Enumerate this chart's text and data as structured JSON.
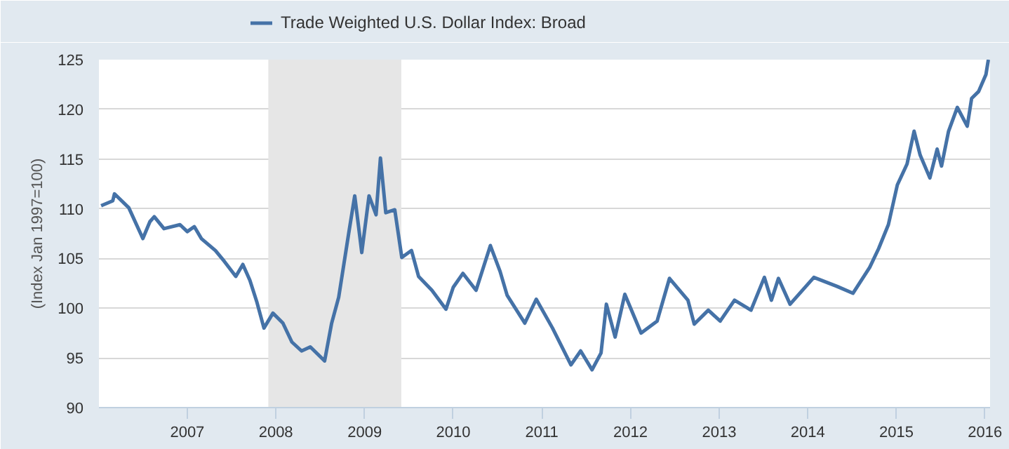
{
  "chart_data": {
    "type": "line",
    "ylabel": "(Index Jan 1997=100)",
    "xlim": [
      "2006-01-02",
      "2016-01-22"
    ],
    "ylim": [
      90,
      125
    ],
    "xticks": [
      "2007",
      "2008",
      "2009",
      "2010",
      "2011",
      "2012",
      "2013",
      "2014",
      "2015",
      "2016"
    ],
    "yticks": [
      90,
      95,
      100,
      105,
      110,
      115,
      120,
      125
    ],
    "grid": "y",
    "legend": "top left",
    "marker": "none",
    "line_style": "solid",
    "bands": [
      {
        "axis": "x",
        "from": "2007-12",
        "to": "2009-06",
        "color": "#e6e6e6"
      }
    ],
    "series": [
      {
        "name": "Trade Weighted U.S. Dollar Index: Broad",
        "color": "#4572a7",
        "x": [
          "2006-01-11",
          "2006-02-28",
          "2006-03-07",
          "2006-05-05",
          "2006-07-02",
          "2006-07-31",
          "2006-08-18",
          "2006-09-27",
          "2006-12-02",
          "2007-01-01",
          "2007-01-30",
          "2007-02-28",
          "2007-04-27",
          "2007-06-03",
          "2007-07-20",
          "2007-08-18",
          "2007-09-16",
          "2007-10-15",
          "2007-11-13",
          "2007-12-20",
          "2008-01-30",
          "2008-03-07",
          "2008-04-16",
          "2008-05-22",
          "2008-07-20",
          "2008-08-18",
          "2008-09-16",
          "2008-10-27",
          "2008-11-21",
          "2008-12-13",
          "2008-12-20",
          "2009-01-19",
          "2009-02-17",
          "2009-03-07",
          "2009-03-29",
          "2009-05-05",
          "2009-06-03",
          "2009-07-13",
          "2009-08-11",
          "2009-10-05",
          "2009-12-02",
          "2010-01-01",
          "2010-02-10",
          "2010-04-05",
          "2010-06-03",
          "2010-07-13",
          "2010-08-11",
          "2010-10-23",
          "2010-12-09",
          "2011-02-14",
          "2011-05-01",
          "2011-06-10",
          "2011-07-27",
          "2011-09-02",
          "2011-09-24",
          "2011-10-30",
          "2011-12-09",
          "2012-02-14",
          "2012-04-20",
          "2012-06-10",
          "2012-08-25",
          "2012-09-20",
          "2012-11-17",
          "2013-01-05",
          "2013-03-05",
          "2013-05-12",
          "2013-07-06",
          "2013-08-04",
          "2013-09-02",
          "2013-10-20",
          "2014-01-26",
          "2014-05-01",
          "2014-07-06",
          "2014-09-13",
          "2014-10-20",
          "2014-11-29",
          "2015-01-05",
          "2015-02-14",
          "2015-03-15",
          "2015-04-09",
          "2015-05-19",
          "2015-06-18",
          "2015-07-06",
          "2015-08-04",
          "2015-09-09",
          "2015-10-20",
          "2015-11-07",
          "2015-12-06",
          "2016-01-05",
          "2016-01-15"
        ],
        "values": [
          110.3,
          110.8,
          111.5,
          110.1,
          107.0,
          108.7,
          109.2,
          108.0,
          108.4,
          107.7,
          108.2,
          107.0,
          105.8,
          104.7,
          103.2,
          104.4,
          102.8,
          100.6,
          98.0,
          99.5,
          98.5,
          96.6,
          95.7,
          96.1,
          94.7,
          98.5,
          101.1,
          107.5,
          111.3,
          107.0,
          105.6,
          111.3,
          109.4,
          115.1,
          109.6,
          109.9,
          105.1,
          105.8,
          103.2,
          101.8,
          99.9,
          102.1,
          103.5,
          101.8,
          106.3,
          103.7,
          101.3,
          98.5,
          100.9,
          98.0,
          94.3,
          95.7,
          93.8,
          95.5,
          100.4,
          97.1,
          101.4,
          97.5,
          98.7,
          103.0,
          100.8,
          98.4,
          99.8,
          98.7,
          100.8,
          99.8,
          103.1,
          100.8,
          103.0,
          100.4,
          103.1,
          102.2,
          101.5,
          104.1,
          106.0,
          108.4,
          112.4,
          114.5,
          117.8,
          115.4,
          113.1,
          116.0,
          114.3,
          117.8,
          120.2,
          118.3,
          121.1,
          121.8,
          123.5,
          125.0
        ]
      }
    ]
  }
}
